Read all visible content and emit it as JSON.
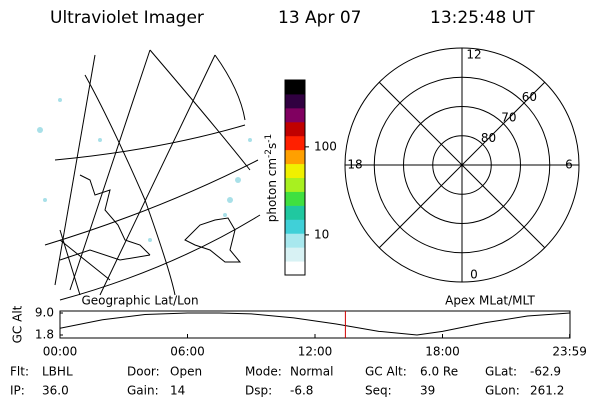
{
  "header": {
    "instrument": "Ultraviolet Imager",
    "date": "13 Apr 07",
    "time": "13:25:48 UT"
  },
  "geo": {
    "title": "Geographic Lat/Lon"
  },
  "colorbar": {
    "label": "photon cm",
    "exp1": "-2",
    "unit2": "s",
    "exp2": "-1",
    "log": true,
    "lim": [
      3.5,
      575
    ],
    "ticks": [
      10,
      100
    ],
    "colors": [
      "#ffffff",
      "#d8f2f4",
      "#a8e8ee",
      "#40d0d8",
      "#20c8a0",
      "#40e040",
      "#a8f020",
      "#f0f000",
      "#ffa000",
      "#ff2000",
      "#c00000",
      "#800060",
      "#300040",
      "#000000"
    ]
  },
  "polar": {
    "title": "Apex MLat/MLT",
    "mlt_labels": [
      "12",
      "6",
      "0",
      "18"
    ],
    "rlim": [
      90,
      50
    ],
    "rings": [
      60,
      70,
      80
    ]
  },
  "altitude": {
    "ylabel": "GC Alt",
    "ylim": [
      1.8,
      9.0
    ],
    "yticks": [
      {
        "value": 9.0,
        "label": "9.0"
      },
      1.8
    ],
    "xlim": [
      0,
      24
    ],
    "xticks": [
      {
        "value": 0,
        "label": "00:00"
      },
      {
        "value": 6,
        "label": "06:00"
      },
      {
        "value": 12,
        "label": "12:00"
      },
      {
        "value": 18,
        "label": "18:00"
      },
      {
        "value": 23.983,
        "label": "23:59"
      }
    ],
    "x": [
      0,
      2,
      4,
      6,
      7.5,
      9,
      11,
      13,
      15,
      16.8,
      18,
      20,
      22,
      24
    ],
    "values": [
      4.0,
      6.8,
      8.5,
      9.0,
      9.0,
      8.7,
      7.4,
      5.4,
      3.0,
      1.8,
      3.0,
      5.8,
      8.0,
      9.0
    ],
    "marker": 13.43,
    "marker_color": "#d00000"
  },
  "footer": [
    [
      [
        "Flt:",
        "LBHL"
      ],
      [
        "Door:",
        "Open"
      ],
      [
        "Mode:",
        "Normal"
      ],
      [
        "GC Alt:",
        "6.0 Re"
      ],
      [
        "GLat:",
        "-62.9"
      ]
    ],
    [
      [
        "IP:",
        "36.0"
      ],
      [
        "Gain:",
        "14"
      ],
      [
        "Dsp:",
        "-6.8"
      ],
      [
        "Seq:",
        "39"
      ],
      [
        "GLon:",
        "261.2"
      ]
    ]
  ]
}
